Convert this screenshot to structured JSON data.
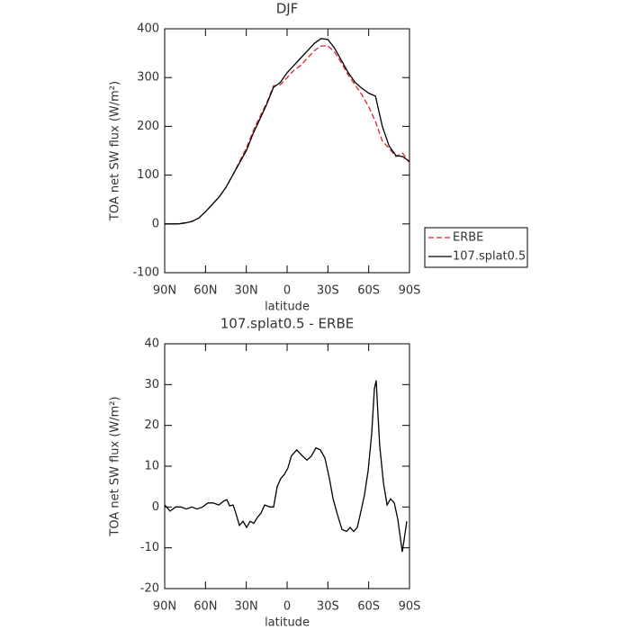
{
  "chart_data": [
    {
      "type": "line",
      "title": "DJF",
      "xlabel": "latitude",
      "ylabel": "TOA net SW flux (W/m²)",
      "x": [
        90,
        85,
        80,
        75,
        70,
        65,
        60,
        55,
        50,
        45,
        40,
        35,
        30,
        25,
        20,
        15,
        10,
        5,
        0,
        -5,
        -10,
        -15,
        -20,
        -25,
        -30,
        -35,
        -40,
        -45,
        -50,
        -55,
        -60,
        -65,
        -70,
        -75,
        -80,
        -85,
        -90
      ],
      "series": [
        {
          "name": "ERBE",
          "color": "#e0202a",
          "dashed": true,
          "values": [
            0,
            0,
            0,
            2,
            5,
            12,
            25,
            40,
            55,
            75,
            100,
            128,
            155,
            190,
            220,
            248,
            283,
            285,
            300,
            315,
            325,
            340,
            355,
            365,
            365,
            352,
            330,
            305,
            285,
            265,
            240,
            210,
            170,
            155,
            138,
            145,
            125
          ]
        },
        {
          "name": "107.splat0.5",
          "color": "#000000",
          "dashed": false,
          "values": [
            0,
            0,
            0,
            2,
            5,
            12,
            25,
            40,
            55,
            75,
            100,
            125,
            150,
            185,
            215,
            245,
            280,
            290,
            310,
            325,
            340,
            355,
            370,
            380,
            378,
            360,
            335,
            310,
            290,
            278,
            268,
            262,
            200,
            160,
            140,
            138,
            128
          ]
        }
      ],
      "xlim": [
        90,
        -90
      ],
      "xticks": [
        {
          "value": 90,
          "label": "90N"
        },
        {
          "value": 60,
          "label": "60N"
        },
        {
          "value": 30,
          "label": "30N"
        },
        0,
        {
          "value": -30,
          "label": "30S"
        },
        {
          "value": -60,
          "label": "60S"
        },
        {
          "value": -90,
          "label": "90S"
        }
      ],
      "ylim": [
        -100,
        400
      ],
      "yticks": [
        -100,
        0,
        100,
        200,
        300,
        400
      ],
      "grid": false,
      "legend": "outside-right"
    },
    {
      "type": "line",
      "title": "107.splat0.5 - ERBE",
      "xlabel": "latitude",
      "ylabel": "TOA net SW flux (W/m²)",
      "x": [
        90,
        86,
        82,
        78,
        74.1,
        70.1,
        66.2,
        62.2,
        58.2,
        54.3,
        50.3,
        46.3,
        44.3,
        42.3,
        39.7,
        37.7,
        35.1,
        32.4,
        29.8,
        27.1,
        24.5,
        21.8,
        19.2,
        16.5,
        12.6,
        9.9,
        7.3,
        4.6,
        2,
        -0.5,
        -3.1,
        -7.1,
        -11.3,
        -14.6,
        -17.9,
        -21.2,
        -24.5,
        -27.8,
        -31.1,
        -33.8,
        -37.1,
        -40.4,
        -43.7,
        -46.3,
        -49,
        -51.6,
        -54.3,
        -56.9,
        -59.6,
        -62.2,
        -64.2,
        -65.5,
        -66.8,
        -68.1,
        -70.8,
        -73.5,
        -76.1,
        -78.8,
        -81.4,
        -84.7,
        -88
      ],
      "values": [
        0.5,
        -1,
        0,
        0,
        -0.5,
        0,
        -0.5,
        0,
        1,
        1,
        0.5,
        1.5,
        1.8,
        0.3,
        0.5,
        -1.5,
        -4.5,
        -3.5,
        -5,
        -3.5,
        -4,
        -2.5,
        -1.5,
        0.5,
        0,
        0,
        5,
        7,
        8,
        9.5,
        12.5,
        14,
        12.5,
        11.5,
        12.5,
        14.5,
        14,
        12,
        7,
        2,
        -2,
        -5.5,
        -6,
        -5,
        -6,
        -5,
        -1,
        3,
        9,
        18,
        29,
        31,
        23,
        15,
        6,
        0.5,
        2,
        1,
        -3,
        -11,
        -3.5
      ],
      "color": "#000000",
      "xlim": [
        90,
        -90
      ],
      "xticks": [
        {
          "value": 90,
          "label": "90N"
        },
        {
          "value": 60,
          "label": "60N"
        },
        {
          "value": 30,
          "label": "30N"
        },
        0,
        {
          "value": -30,
          "label": "30S"
        },
        {
          "value": -60,
          "label": "60S"
        },
        {
          "value": -90,
          "label": "90S"
        }
      ],
      "ylim": [
        -20,
        40
      ],
      "yticks": [
        -20,
        -10,
        0,
        10,
        20,
        30,
        40
      ],
      "grid": false
    }
  ]
}
